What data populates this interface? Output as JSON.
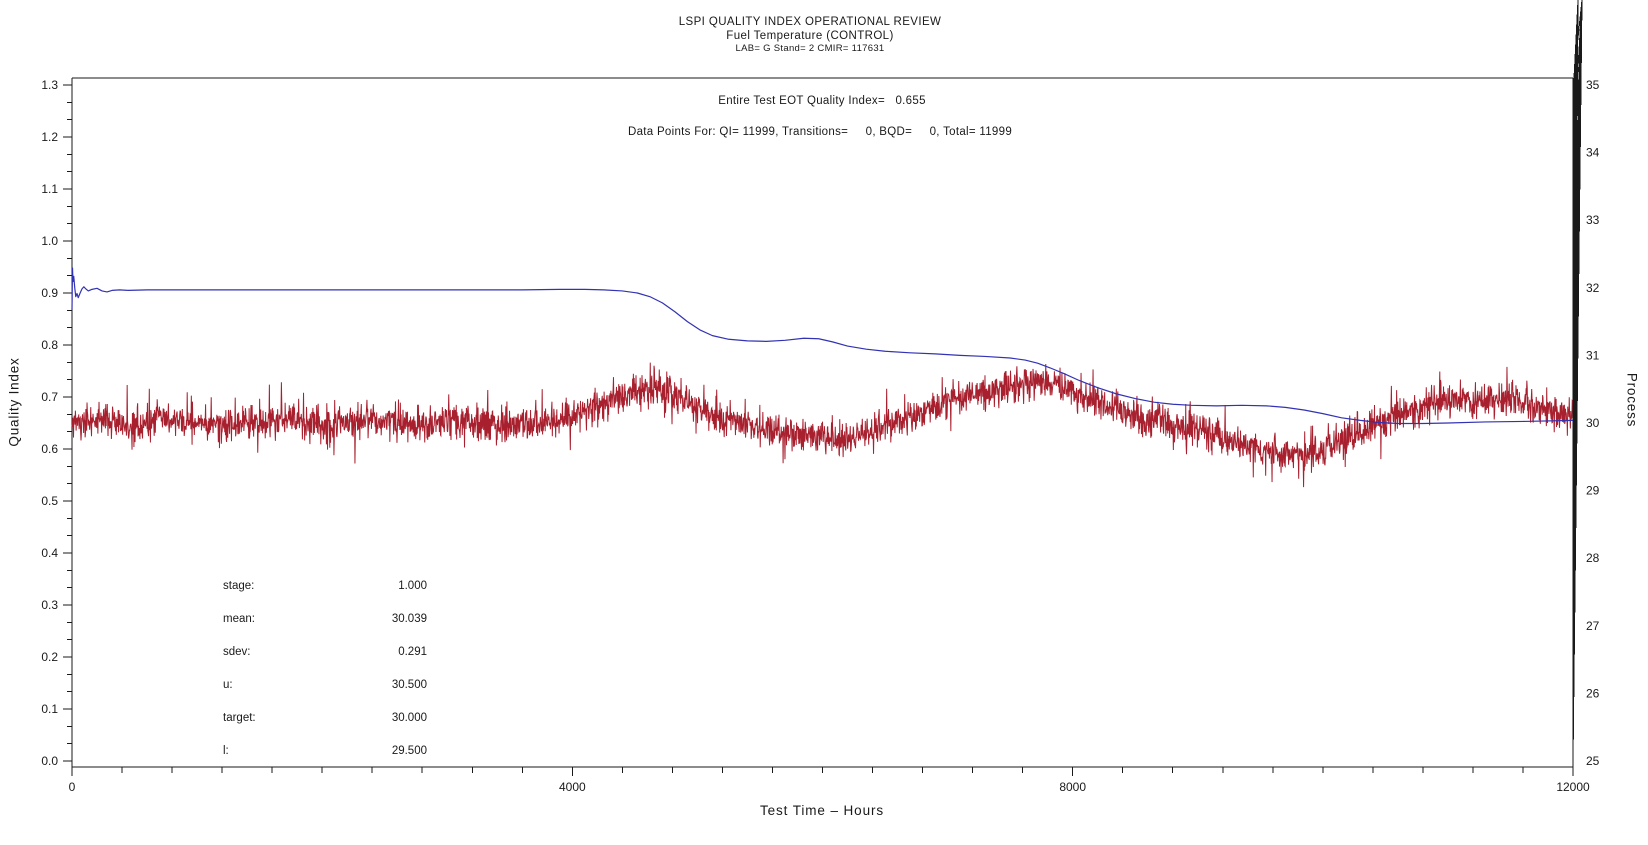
{
  "header": {
    "title1": "LSPI QUALITY INDEX OPERATIONAL REVIEW",
    "title2": "Fuel Temperature (CONTROL)",
    "title3": "LAB= G Stand= 2 CMIR= 117631"
  },
  "chart_data": {
    "type": "line",
    "title": "LSPI QUALITY INDEX OPERATIONAL REVIEW",
    "subtitle": "Fuel Temperature (CONTROL)",
    "annotations": {
      "eot_quality": "Entire Test EOT Quality Index=   0.655",
      "data_points": "Data Points For: QI= 11999, Transitions=     0, BQD=     0, Total= 11999"
    },
    "stats": [
      {
        "label": "stage:",
        "value": "1.000"
      },
      {
        "label": "mean:",
        "value": "30.039"
      },
      {
        "label": "sdev:",
        "value": "0.291"
      },
      {
        "label": "u:",
        "value": "30.500"
      },
      {
        "label": "target:",
        "value": "30.000"
      },
      {
        "label": "l:",
        "value": "29.500"
      }
    ],
    "x_axis": {
      "label": "Test Time – Hours",
      "min": 0,
      "max": 12000,
      "major_ticks": [
        0,
        4000,
        8000,
        12000
      ],
      "major_tick_labels": [
        "0",
        "4000",
        "8000",
        "12000"
      ],
      "minor_step": 400
    },
    "y_left": {
      "label": "Quality Index",
      "min": 0.0,
      "max": 1.3,
      "major_step": 0.1,
      "minors_per_interval": 2,
      "tick_labels": [
        "0.0",
        "0.1",
        "0.2",
        "0.3",
        "0.4",
        "0.5",
        "0.6",
        "0.7",
        "0.8",
        "0.9",
        "1.0",
        "1.1",
        "1.2",
        "1.3"
      ]
    },
    "y_right": {
      "label": "Process",
      "min": 25,
      "max": 35,
      "major_step": 1,
      "minor_step": 0.2,
      "tick_labels": [
        "25",
        "26",
        "27",
        "28",
        "29",
        "30",
        "31",
        "32",
        "33",
        "34",
        "35"
      ]
    },
    "grid": false,
    "colors": {
      "quality_index": "#3232b4",
      "process": "#a81f2e",
      "axis": "#1a1a1a"
    },
    "series": [
      {
        "name": "Quality Index",
        "axis": "left",
        "style": "smooth-line",
        "points": [
          [
            0,
            0.868
          ],
          [
            4,
            0.948
          ],
          [
            8,
            0.922
          ],
          [
            14,
            0.932
          ],
          [
            22,
            0.91
          ],
          [
            30,
            0.893
          ],
          [
            40,
            0.899
          ],
          [
            50,
            0.891
          ],
          [
            65,
            0.9
          ],
          [
            80,
            0.908
          ],
          [
            95,
            0.912
          ],
          [
            110,
            0.908
          ],
          [
            130,
            0.904
          ],
          [
            160,
            0.907
          ],
          [
            200,
            0.909
          ],
          [
            240,
            0.904
          ],
          [
            280,
            0.902
          ],
          [
            320,
            0.905
          ],
          [
            380,
            0.906
          ],
          [
            450,
            0.905
          ],
          [
            600,
            0.906
          ],
          [
            800,
            0.906
          ],
          [
            1200,
            0.906
          ],
          [
            1600,
            0.906
          ],
          [
            2000,
            0.906
          ],
          [
            2400,
            0.906
          ],
          [
            2800,
            0.906
          ],
          [
            3200,
            0.906
          ],
          [
            3600,
            0.906
          ],
          [
            3900,
            0.907
          ],
          [
            4100,
            0.907
          ],
          [
            4250,
            0.906
          ],
          [
            4400,
            0.904
          ],
          [
            4520,
            0.9
          ],
          [
            4620,
            0.893
          ],
          [
            4720,
            0.881
          ],
          [
            4820,
            0.864
          ],
          [
            4920,
            0.845
          ],
          [
            5020,
            0.829
          ],
          [
            5120,
            0.818
          ],
          [
            5250,
            0.811
          ],
          [
            5400,
            0.808
          ],
          [
            5550,
            0.807
          ],
          [
            5700,
            0.809
          ],
          [
            5850,
            0.813
          ],
          [
            5970,
            0.812
          ],
          [
            6080,
            0.806
          ],
          [
            6200,
            0.798
          ],
          [
            6350,
            0.792
          ],
          [
            6500,
            0.788
          ],
          [
            6700,
            0.785
          ],
          [
            6900,
            0.783
          ],
          [
            7100,
            0.78
          ],
          [
            7300,
            0.778
          ],
          [
            7500,
            0.775
          ],
          [
            7620,
            0.771
          ],
          [
            7720,
            0.765
          ],
          [
            7820,
            0.756
          ],
          [
            7930,
            0.745
          ],
          [
            8050,
            0.732
          ],
          [
            8200,
            0.718
          ],
          [
            8350,
            0.706
          ],
          [
            8500,
            0.697
          ],
          [
            8650,
            0.69
          ],
          [
            8800,
            0.686
          ],
          [
            8950,
            0.684
          ],
          [
            9150,
            0.683
          ],
          [
            9350,
            0.684
          ],
          [
            9550,
            0.683
          ],
          [
            9700,
            0.68
          ],
          [
            9850,
            0.675
          ],
          [
            10000,
            0.668
          ],
          [
            10150,
            0.66
          ],
          [
            10300,
            0.655
          ],
          [
            10450,
            0.651
          ],
          [
            10600,
            0.649
          ],
          [
            10800,
            0.649
          ],
          [
            11000,
            0.65
          ],
          [
            11300,
            0.652
          ],
          [
            11600,
            0.653
          ],
          [
            11999,
            0.655
          ]
        ]
      },
      {
        "name": "Process (Fuel Temperature)",
        "axis": "right",
        "style": "noisy-line",
        "trend": [
          [
            0,
            30.0
          ],
          [
            250,
            30.05
          ],
          [
            500,
            29.97
          ],
          [
            750,
            30.06
          ],
          [
            1000,
            30.02
          ],
          [
            1250,
            29.96
          ],
          [
            1500,
            30.0
          ],
          [
            1750,
            30.05
          ],
          [
            2000,
            29.98
          ],
          [
            2250,
            30.0
          ],
          [
            2500,
            30.04
          ],
          [
            2750,
            29.97
          ],
          [
            3000,
            30.02
          ],
          [
            3250,
            30.0
          ],
          [
            3500,
            29.96
          ],
          [
            3750,
            30.02
          ],
          [
            4000,
            30.1
          ],
          [
            4200,
            30.22
          ],
          [
            4400,
            30.38
          ],
          [
            4600,
            30.5
          ],
          [
            4750,
            30.45
          ],
          [
            4900,
            30.32
          ],
          [
            5100,
            30.15
          ],
          [
            5300,
            30.02
          ],
          [
            5500,
            29.92
          ],
          [
            5700,
            29.84
          ],
          [
            5900,
            29.79
          ],
          [
            6100,
            29.76
          ],
          [
            6300,
            29.8
          ],
          [
            6500,
            29.95
          ],
          [
            6700,
            30.1
          ],
          [
            6900,
            30.25
          ],
          [
            7100,
            30.38
          ],
          [
            7300,
            30.46
          ],
          [
            7500,
            30.55
          ],
          [
            7700,
            30.62
          ],
          [
            7850,
            30.58
          ],
          [
            8000,
            30.48
          ],
          [
            8200,
            30.32
          ],
          [
            8400,
            30.18
          ],
          [
            8600,
            30.05
          ],
          [
            8800,
            29.98
          ],
          [
            9000,
            29.9
          ],
          [
            9200,
            29.78
          ],
          [
            9400,
            29.65
          ],
          [
            9600,
            29.55
          ],
          [
            9800,
            29.5
          ],
          [
            9950,
            29.55
          ],
          [
            10100,
            29.68
          ],
          [
            10300,
            29.88
          ],
          [
            10500,
            30.05
          ],
          [
            10700,
            30.2
          ],
          [
            10900,
            30.32
          ],
          [
            11100,
            30.33
          ],
          [
            11300,
            30.3
          ],
          [
            11500,
            30.34
          ],
          [
            11700,
            30.24
          ],
          [
            11900,
            30.12
          ],
          [
            11999,
            30.1
          ]
        ],
        "noise": {
          "sigma": 0.12,
          "spike_prob": 0.07,
          "spike_min": 0.1,
          "spike_max": 0.35,
          "seed": 20240101,
          "step_hours": 3
        }
      }
    ]
  }
}
